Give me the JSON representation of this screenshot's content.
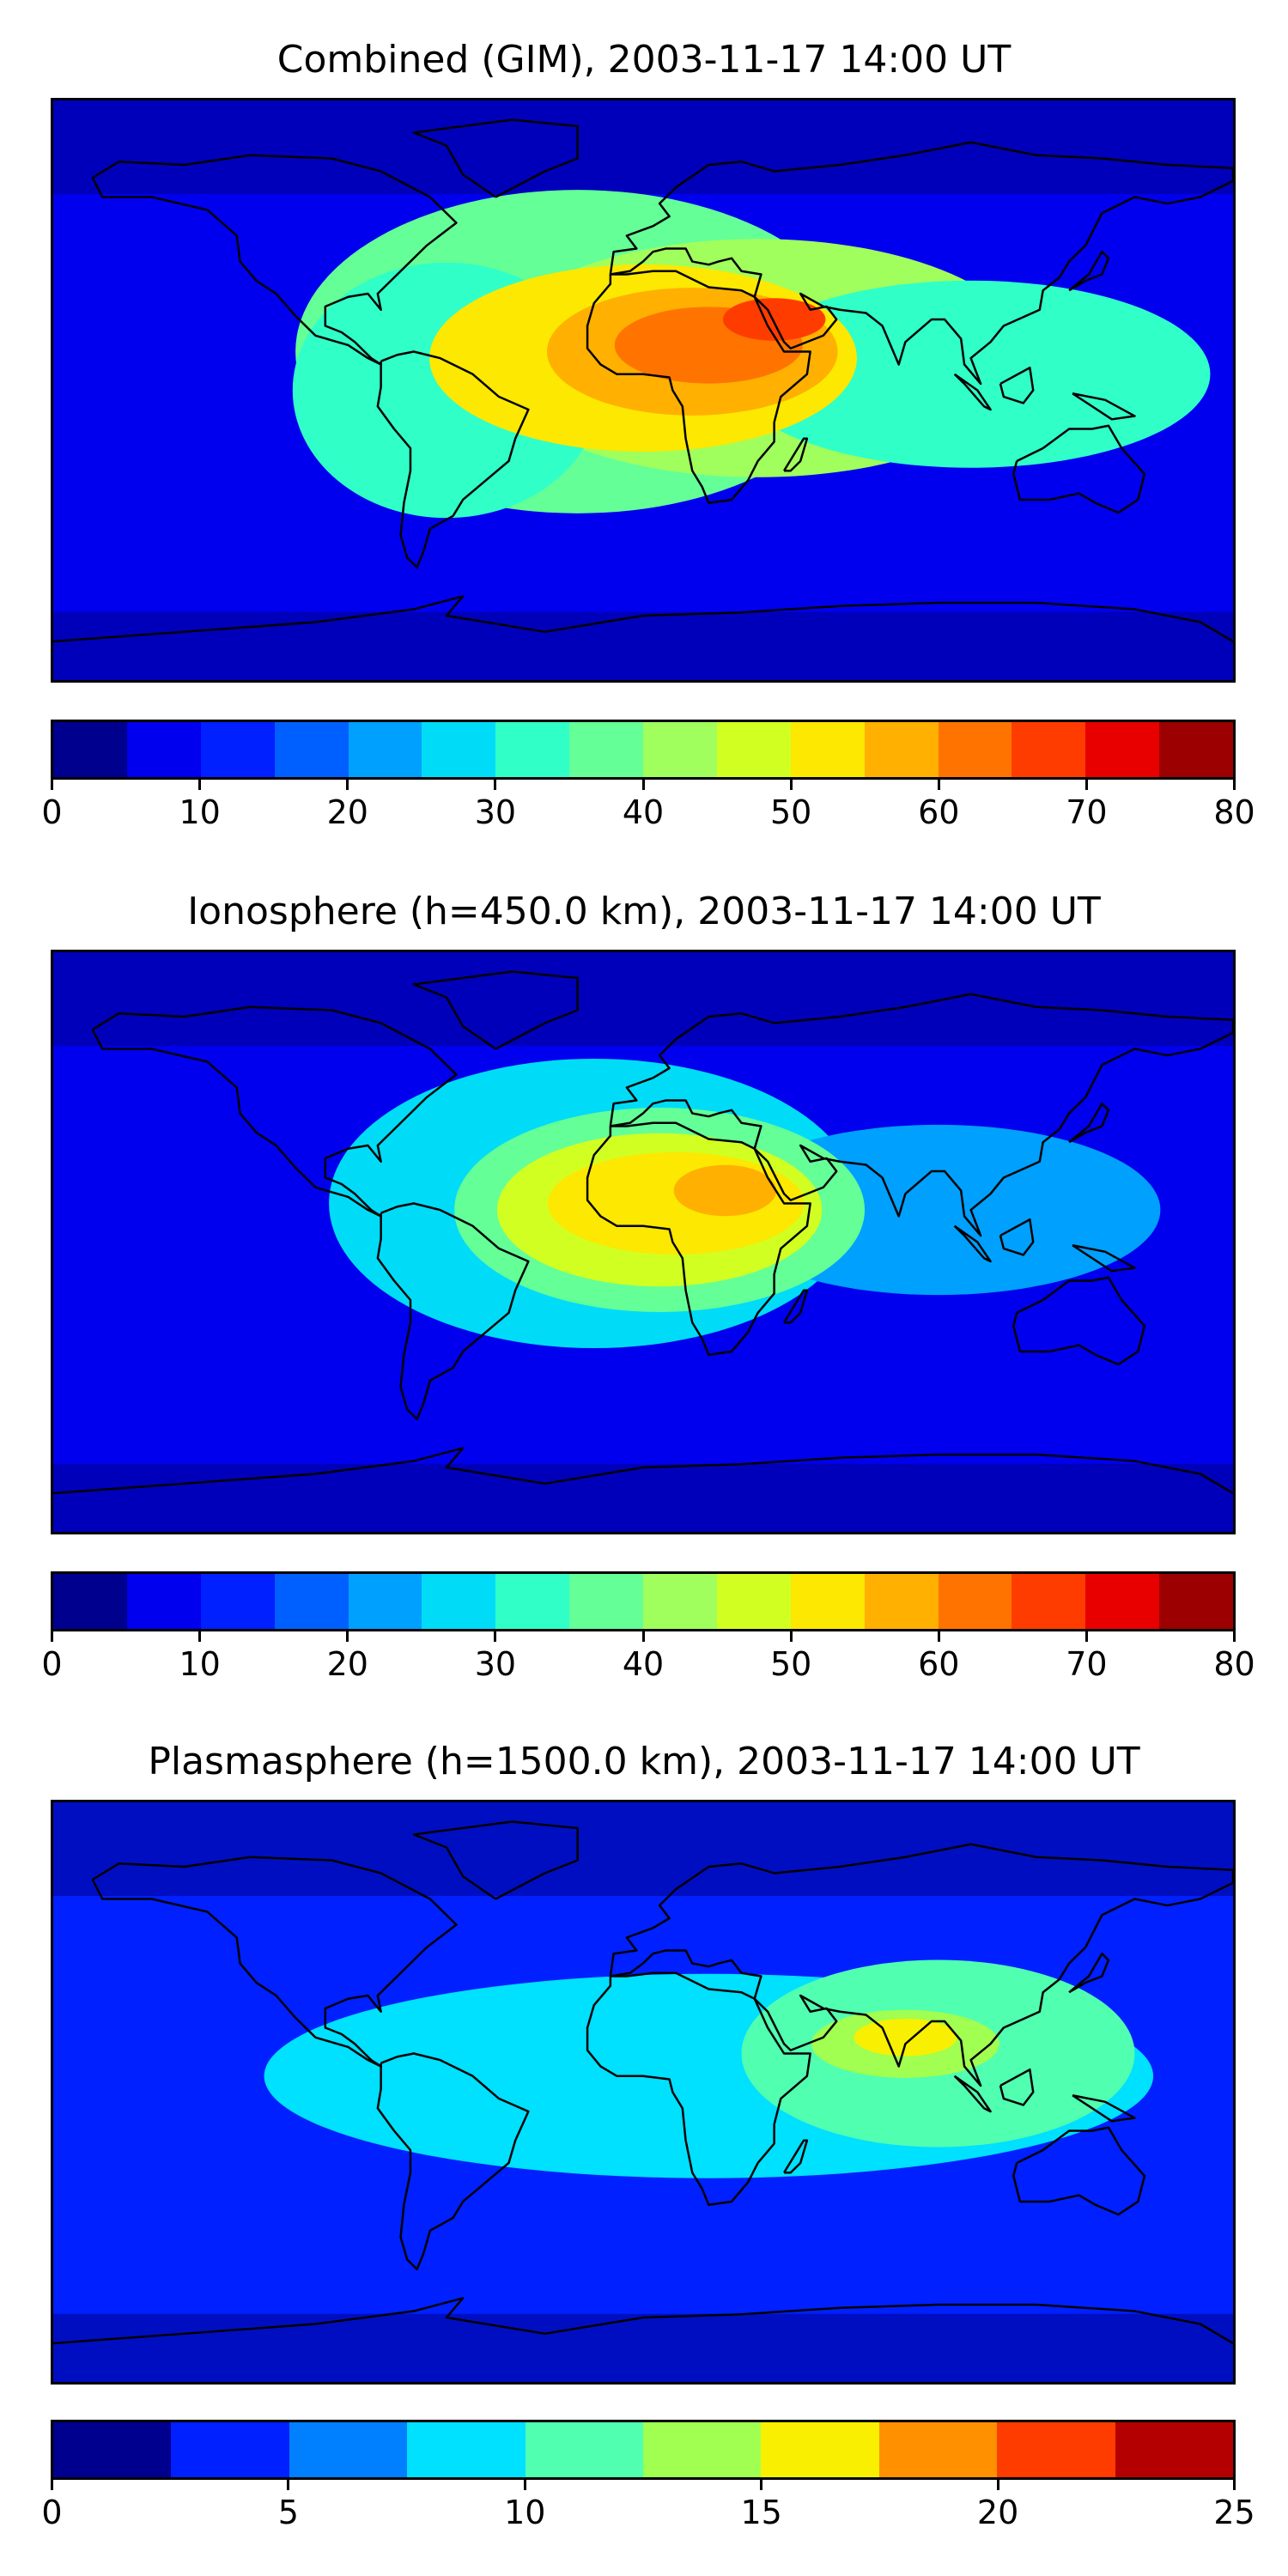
{
  "panels": [
    {
      "title": "Combined (GIM), 2003-11-17 14:00 UT",
      "colorbar_ticks": [
        "0",
        "10",
        "20",
        "30",
        "40",
        "50",
        "60",
        "70",
        "80"
      ],
      "colorbar_colors": [
        "#00008f",
        "#0000ee",
        "#0020ff",
        "#0060ff",
        "#00a0ff",
        "#00dcf8",
        "#30ffc8",
        "#64ff96",
        "#a0ff5c",
        "#d2ff22",
        "#fce800",
        "#ffb000",
        "#ff7400",
        "#ff3c00",
        "#e80000",
        "#9c0000"
      ],
      "background_color": "#0000ee",
      "blobs": [
        {
          "lon": -20,
          "lat": 12,
          "rx": 330,
          "ry": 190,
          "level": 7
        },
        {
          "lon": 35,
          "lat": 10,
          "rx": 320,
          "ry": 140,
          "level": 8
        },
        {
          "lon": 100,
          "lat": 5,
          "rx": 280,
          "ry": 110,
          "level": 6
        },
        {
          "lon": -60,
          "lat": 0,
          "rx": 180,
          "ry": 150,
          "level": 6
        },
        {
          "lon": 0,
          "lat": 10,
          "rx": 250,
          "ry": 110,
          "level": 10
        },
        {
          "lon": 15,
          "lat": 12,
          "rx": 170,
          "ry": 75,
          "level": 11
        },
        {
          "lon": 20,
          "lat": 14,
          "rx": 110,
          "ry": 45,
          "level": 12
        },
        {
          "lon": 40,
          "lat": 22,
          "rx": 60,
          "ry": 25,
          "level": 13
        }
      ]
    },
    {
      "title": "Ionosphere  (h=450.0 km), 2003-11-17 14:00 UT",
      "colorbar_ticks": [
        "0",
        "10",
        "20",
        "30",
        "40",
        "50",
        "60",
        "70",
        "80"
      ],
      "colorbar_colors": [
        "#00008f",
        "#0000ee",
        "#0020ff",
        "#0060ff",
        "#00a0ff",
        "#00dcf8",
        "#30ffc8",
        "#64ff96",
        "#a0ff5c",
        "#d2ff22",
        "#fce800",
        "#ffb000",
        "#ff7400",
        "#ff3c00",
        "#e80000",
        "#9c0000"
      ],
      "background_color": "#0000ee",
      "blobs": [
        {
          "lon": -15,
          "lat": 12,
          "rx": 310,
          "ry": 170,
          "level": 5
        },
        {
          "lon": 90,
          "lat": 10,
          "rx": 260,
          "ry": 100,
          "level": 4
        },
        {
          "lon": 5,
          "lat": 10,
          "rx": 240,
          "ry": 120,
          "level": 7
        },
        {
          "lon": 5,
          "lat": 10,
          "rx": 190,
          "ry": 90,
          "level": 9
        },
        {
          "lon": 10,
          "lat": 12,
          "rx": 150,
          "ry": 60,
          "level": 10
        },
        {
          "lon": 25,
          "lat": 16,
          "rx": 60,
          "ry": 30,
          "level": 11
        }
      ]
    },
    {
      "title": "Plasmasphere (h=1500.0 km), 2003-11-17 14:00 UT",
      "colorbar_ticks": [
        "0",
        "5",
        "10",
        "15",
        "20",
        "25"
      ],
      "colorbar_colors": [
        "#00008f",
        "#0020ff",
        "#0080ff",
        "#00e0ff",
        "#50ffb0",
        "#a0ff50",
        "#f8f000",
        "#ff9000",
        "#ff3c00",
        "#b40000"
      ],
      "background_color": "#0020ff",
      "blobs": [
        {
          "lon": 20,
          "lat": 5,
          "rx": 520,
          "ry": 120,
          "level": 3
        },
        {
          "lon": 90,
          "lat": 12,
          "rx": 230,
          "ry": 110,
          "level": 4
        },
        {
          "lon": 80,
          "lat": 15,
          "rx": 110,
          "ry": 40,
          "level": 5
        },
        {
          "lon": 80,
          "lat": 17,
          "rx": 60,
          "ry": 22,
          "level": 6
        }
      ]
    }
  ]
}
